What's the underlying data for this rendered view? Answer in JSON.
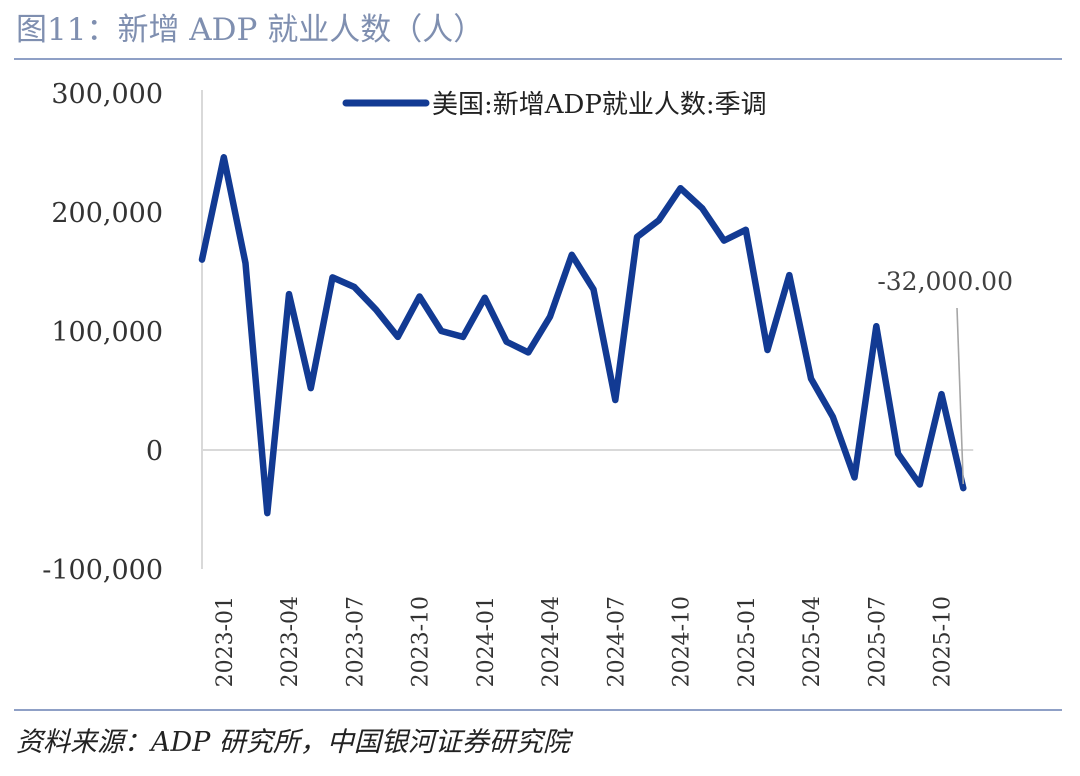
{
  "title": "图11：新增 ADP 就业人数（人）",
  "source": "资料来源：ADP 研究所，中国银河证券研究院",
  "colors": {
    "series": "#123a93",
    "axis": "#d9d9d9",
    "title": "#7f8fb0",
    "rule": "#8fa0c6",
    "annotation_line": "#a6a6a6"
  },
  "chart_data": {
    "type": "line",
    "title": "",
    "xlabel": "",
    "ylabel": "",
    "ylim": [
      -100000,
      300000
    ],
    "yticks": [
      -100000,
      0,
      100000,
      200000,
      300000
    ],
    "ytick_labels": [
      "-100,000",
      "0",
      "100,000",
      "200,000",
      "300,000"
    ],
    "grid": false,
    "legend_position": "top-center",
    "x": [
      "2022-12",
      "2023-01",
      "2023-02",
      "2023-03",
      "2023-04",
      "2023-05",
      "2023-06",
      "2023-07",
      "2023-08",
      "2023-09",
      "2023-10",
      "2023-11",
      "2023-12",
      "2024-01",
      "2024-02",
      "2024-03",
      "2024-04",
      "2024-05",
      "2024-06",
      "2024-07",
      "2024-08",
      "2024-09",
      "2024-10",
      "2024-11",
      "2024-12",
      "2025-01",
      "2025-02",
      "2025-03",
      "2025-04",
      "2025-05",
      "2025-06",
      "2025-07",
      "2025-08",
      "2025-09",
      "2025-10",
      "2025-11"
    ],
    "xtick_labels": [
      "2023-01",
      "2023-04",
      "2023-07",
      "2023-10",
      "2024-01",
      "2024-04",
      "2024-07",
      "2024-10",
      "2025-01",
      "2025-04",
      "2025-07",
      "2025-10"
    ],
    "series": [
      {
        "name": "美国:新增ADP就业人数:季调",
        "values": [
          160000,
          246000,
          157000,
          -53000,
          131000,
          52000,
          145000,
          137000,
          118000,
          95000,
          129000,
          100000,
          95000,
          128000,
          91000,
          82000,
          112000,
          164000,
          135000,
          42000,
          179000,
          193000,
          220000,
          203000,
          176000,
          185000,
          84000,
          147000,
          60000,
          28000,
          -23000,
          104000,
          -3000,
          -29000,
          47000,
          -32000
        ]
      }
    ],
    "annotations": [
      {
        "text": "-32,000.00",
        "x": "2025-11",
        "y": -32000
      }
    ]
  }
}
